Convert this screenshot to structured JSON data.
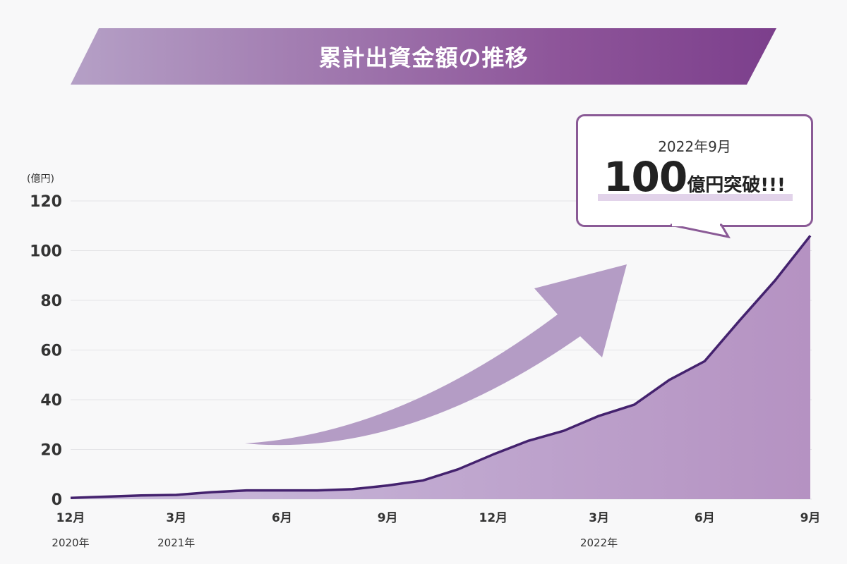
{
  "header": {
    "title": "累計出資金額の推移"
  },
  "callout": {
    "date": "2022年9月",
    "value": "100",
    "suffix": "億円突破!!!"
  },
  "chart_data": {
    "type": "area",
    "title": "累計出資金額の推移",
    "ylabel": "(億円)",
    "ylim": [
      0,
      120
    ],
    "yticks": [
      0,
      20,
      40,
      60,
      80,
      100,
      120
    ],
    "x": [
      0,
      1,
      2,
      3,
      4,
      5,
      6,
      7,
      8,
      9,
      10,
      11,
      12,
      13,
      14,
      15,
      16,
      17,
      18,
      19,
      20,
      21
    ],
    "values": [
      0.5,
      1,
      1.5,
      1.7,
      2.8,
      3.5,
      3.5,
      3.5,
      4,
      5.5,
      7.5,
      12,
      18,
      23.5,
      27.5,
      33.5,
      38,
      48,
      55.5,
      72,
      88,
      106
    ],
    "x_ticks": [
      {
        "x": 0,
        "label": "12月"
      },
      {
        "x": 3,
        "label": "3月"
      },
      {
        "x": 6,
        "label": "6月"
      },
      {
        "x": 9,
        "label": "9月"
      },
      {
        "x": 12,
        "label": "12月"
      },
      {
        "x": 15,
        "label": "3月"
      },
      {
        "x": 18,
        "label": "6月"
      },
      {
        "x": 21,
        "label": "9月"
      }
    ],
    "year_labels": [
      {
        "x": 0,
        "label": "2020年"
      },
      {
        "x": 3,
        "label": "2021年"
      },
      {
        "x": 15,
        "label": "2022年"
      }
    ],
    "colors": {
      "line": "#44226e",
      "area_start": "#cbbedd",
      "area_end": "#b592c2",
      "arrow": "#b49cc5",
      "grid": "#e3e3e6"
    }
  }
}
